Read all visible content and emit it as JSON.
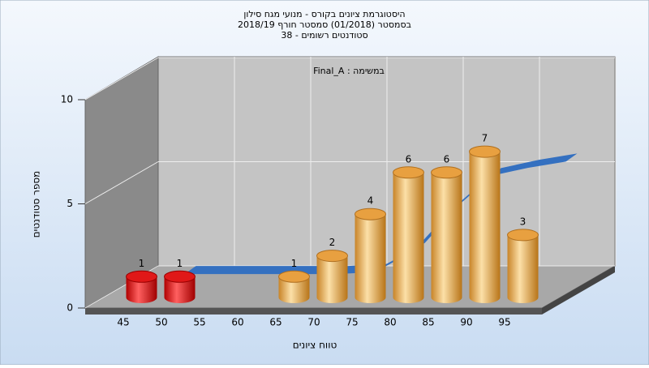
{
  "chart_data": {
    "type": "bar3d",
    "title": "היסטוגרמת ציונים בקורס - מנועי מגח סילון",
    "subtitle": "בסמסטר  (01/2018)  סמסטר חורף 2018/19",
    "subtitle2": "סטודנטים רשומים - 38",
    "annotation": "Final_A : במשימה",
    "xlabel": "טווח ציונים",
    "ylabel": "מספר סטודנטים",
    "categories": [
      "45",
      "50",
      "55",
      "60",
      "65",
      "70",
      "75",
      "80",
      "85",
      "90",
      "95"
    ],
    "values": [
      1,
      1,
      0,
      0,
      1,
      2,
      4,
      6,
      6,
      7,
      3
    ],
    "colors": [
      "#e01818",
      "#e01818",
      "#e8a040",
      "#e8a040",
      "#e8a040",
      "#e8a040",
      "#e8a040",
      "#e8a040",
      "#e8a040",
      "#e8a040",
      "#e8a040"
    ],
    "fit": {
      "color": "#3470c0",
      "values": [
        0.5,
        0.5,
        0.5,
        0.5,
        0.5,
        0.6,
        1.6,
        3.6,
        5.2,
        5.6,
        5.9
      ]
    },
    "ylim": [
      0,
      10
    ],
    "yticks": [
      0,
      5,
      10
    ],
    "grid": true
  }
}
